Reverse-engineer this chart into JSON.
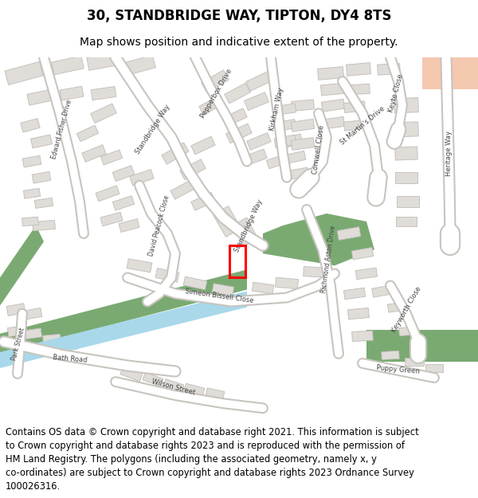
{
  "title": "30, STANDBRIDGE WAY, TIPTON, DY4 8TS",
  "subtitle": "Map shows position and indicative extent of the property.",
  "footer": "Contains OS data © Crown copyright and database right 2021. This information is subject\nto Crown copyright and database rights 2023 and is reproduced with the permission of\nHM Land Registry. The polygons (including the associated geometry, namely x, y\nco-ordinates) are subject to Crown copyright and database rights 2023 Ordnance Survey\n100026316.",
  "title_fontsize": 12,
  "subtitle_fontsize": 10,
  "footer_fontsize": 8.3,
  "bg_color": "#ffffff",
  "map_bg": "#f5f3f0",
  "road_color": "#ffffff",
  "road_stroke": "#c8c4be",
  "building_color": "#e0dcd8",
  "building_stroke": "#c0bcb8",
  "green_color": "#7aaa72",
  "blue_color": "#a8d8ea",
  "salmon_color": "#f5c8b0",
  "highlight_color": "#ff0000",
  "fig_width": 6.0,
  "fig_height": 6.25
}
